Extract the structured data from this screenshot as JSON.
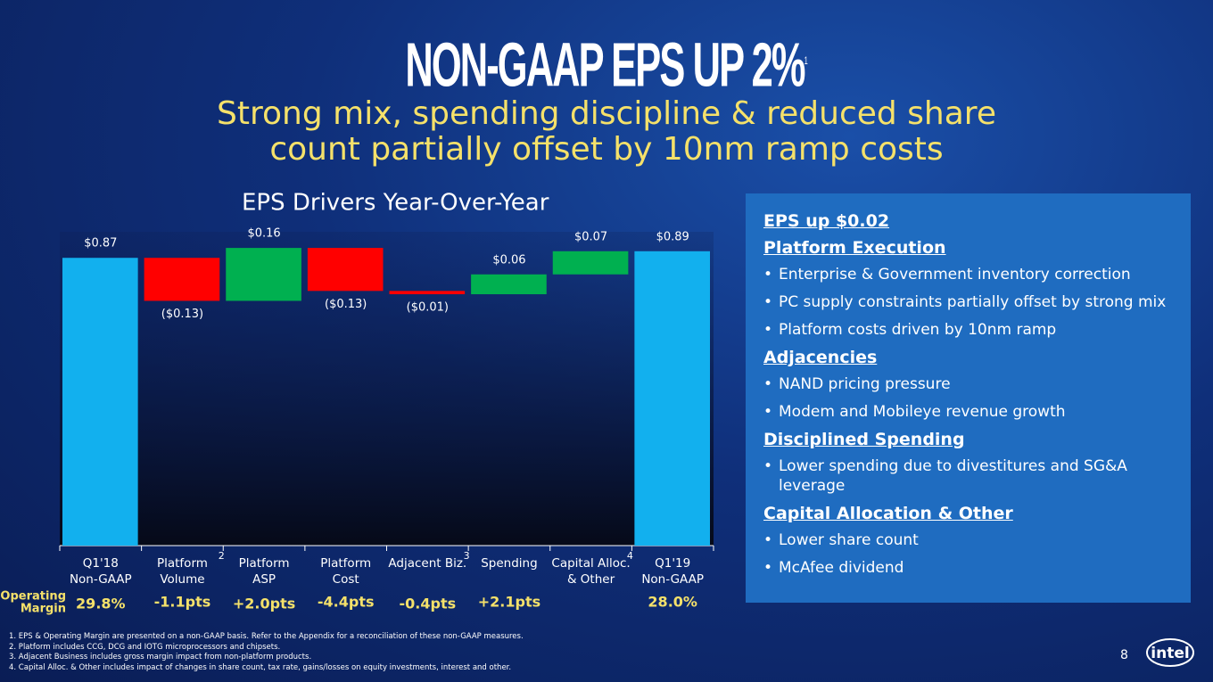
{
  "title": "NON-GAAP EPS UP 2%",
  "title_note": "1",
  "subtitle": [
    "Strong mix, spending discipline & reduced share",
    "count partially offset by 10nm ramp costs"
  ],
  "chart_data": {
    "type": "waterfall",
    "title": "EPS Drivers Year-Over-Year",
    "categories": [
      [
        "Q1'18",
        "Non-GAAP"
      ],
      [
        "Platform",
        "Volume"
      ],
      [
        "Platform",
        "ASP"
      ],
      [
        "Platform",
        "Cost"
      ],
      [
        "Adjacent Biz."
      ],
      [
        "Spending"
      ],
      [
        "Capital Alloc.",
        "& Other"
      ],
      [
        "Q1'19",
        "Non-GAAP"
      ]
    ],
    "category_notes": [
      null,
      "2",
      null,
      null,
      "3",
      null,
      "4",
      null
    ],
    "values": [
      0.87,
      -0.13,
      0.16,
      -0.13,
      -0.01,
      0.06,
      0.07,
      0.89
    ],
    "value_labels": [
      "$0.87",
      "($0.13)",
      "$0.16",
      "($0.13)",
      "($0.01)",
      "$0.06",
      "$0.07",
      "$0.89"
    ],
    "total": [
      true,
      false,
      false,
      false,
      false,
      false,
      false,
      true
    ],
    "colors": {
      "total": "#12b0ee",
      "increase": "#00b050",
      "decrease": "#ff0000"
    }
  },
  "operating_margin": {
    "label": [
      "Operating",
      "Margin"
    ],
    "values": [
      "29.8%",
      "-1.1pts",
      "+2.0pts",
      "-4.4pts",
      "-0.4pts",
      "+2.1pts",
      null,
      "28.0%"
    ]
  },
  "panel": [
    {
      "heading": "EPS up $0.02",
      "bullets": []
    },
    {
      "heading": "Platform Execution",
      "bullets": [
        "Enterprise & Government inventory correction",
        "PC supply constraints partially offset by strong mix",
        "Platform costs driven by 10nm ramp"
      ]
    },
    {
      "heading": "Adjacencies",
      "bullets": [
        "NAND pricing pressure",
        "Modem and Mobileye revenue growth"
      ]
    },
    {
      "heading": "Disciplined Spending",
      "bullets": [
        "Lower spending due to divestitures and SG&A leverage"
      ]
    },
    {
      "heading": "Capital Allocation & Other",
      "bullets": [
        "Lower share count",
        "McAfee dividend"
      ]
    }
  ],
  "footnotes": [
    "1. EPS & Operating Margin are presented on a non-GAAP basis. Refer to the Appendix for a reconciliation of these non-GAAP measures.",
    "2. Platform includes CCG, DCG and IOTG microprocessors and chipsets.",
    "3. Adjacent Business includes gross margin impact from non-platform products.",
    "4. Capital Alloc. & Other includes impact of changes in share count, tax rate, gains/losses on equity investments, interest and other."
  ],
  "page_number": "8",
  "logo": "intel"
}
